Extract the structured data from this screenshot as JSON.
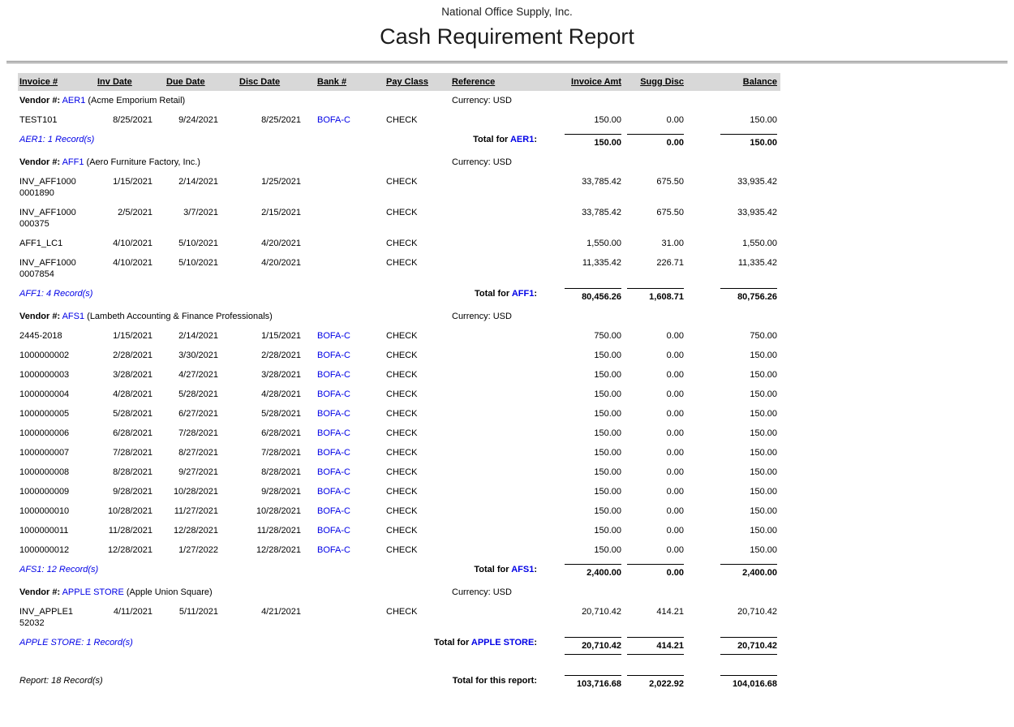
{
  "page": {
    "company": "National Office Supply, Inc.",
    "title": "Cash Requirement Report"
  },
  "colors": {
    "link_blue": "#0000e6",
    "header_gray": "#d8d8d8",
    "rule_gray": "#7f7f7f"
  },
  "columns": [
    "Invoice #",
    "Inv Date",
    "Due Date",
    "Disc Date",
    "Bank #",
    "Pay Class",
    "Reference",
    "Invoice Amt",
    "Sugg Disc",
    "Balance"
  ],
  "labels": {
    "vendor_prefix": "Vendor #:",
    "total_for": "Total for",
    "colon": ":"
  },
  "vendors": [
    {
      "code": "AER1",
      "name": "(Acme Emporium Retail)",
      "currency": "Currency: USD",
      "records_label": "AER1: 1 Record(s)",
      "total": {
        "invoice_amt": "150.00",
        "sugg_disc": "0.00",
        "balance": "150.00"
      },
      "rows": [
        {
          "invoice": "TEST101",
          "inv_date": "8/25/2021",
          "due_date": "9/24/2021",
          "disc_date": "8/25/2021",
          "bank": "BOFA-C",
          "pay_class": "CHECK",
          "reference": "",
          "invoice_amt": "150.00",
          "sugg_disc": "0.00",
          "balance": "150.00"
        }
      ]
    },
    {
      "code": "AFF1",
      "name": "(Aero Furniture Factory, Inc.)",
      "currency": "Currency: USD",
      "records_label": "AFF1: 4 Record(s)",
      "total": {
        "invoice_amt": "80,456.26",
        "sugg_disc": "1,608.71",
        "balance": "80,756.26"
      },
      "rows": [
        {
          "invoice": "INV_AFF10000001890",
          "inv_date": "1/15/2021",
          "due_date": "2/14/2021",
          "disc_date": "1/25/2021",
          "bank": "",
          "pay_class": "CHECK",
          "reference": "",
          "invoice_amt": "33,785.42",
          "sugg_disc": "675.50",
          "balance": "33,935.42"
        },
        {
          "invoice": "INV_AFF1000000375",
          "inv_date": "2/5/2021",
          "due_date": "3/7/2021",
          "disc_date": "2/15/2021",
          "bank": "",
          "pay_class": "CHECK",
          "reference": "",
          "invoice_amt": "33,785.42",
          "sugg_disc": "675.50",
          "balance": "33,935.42"
        },
        {
          "invoice": "AFF1_LC1",
          "inv_date": "4/10/2021",
          "due_date": "5/10/2021",
          "disc_date": "4/20/2021",
          "bank": "",
          "pay_class": "CHECK",
          "reference": "",
          "invoice_amt": "1,550.00",
          "sugg_disc": "31.00",
          "balance": "1,550.00"
        },
        {
          "invoice": "INV_AFF10000007854",
          "inv_date": "4/10/2021",
          "due_date": "5/10/2021",
          "disc_date": "4/20/2021",
          "bank": "",
          "pay_class": "CHECK",
          "reference": "",
          "invoice_amt": "11,335.42",
          "sugg_disc": "226.71",
          "balance": "11,335.42"
        }
      ]
    },
    {
      "code": "AFS1",
      "name": "(Lambeth Accounting & Finance Professionals)",
      "currency": "Currency: USD",
      "records_label": "AFS1: 12 Record(s)",
      "total": {
        "invoice_amt": "2,400.00",
        "sugg_disc": "0.00",
        "balance": "2,400.00"
      },
      "rows": [
        {
          "invoice": "2445-2018",
          "inv_date": "1/15/2021",
          "due_date": "2/14/2021",
          "disc_date": "1/15/2021",
          "bank": "BOFA-C",
          "pay_class": "CHECK",
          "reference": "",
          "invoice_amt": "750.00",
          "sugg_disc": "0.00",
          "balance": "750.00"
        },
        {
          "invoice": "1000000002",
          "inv_date": "2/28/2021",
          "due_date": "3/30/2021",
          "disc_date": "2/28/2021",
          "bank": "BOFA-C",
          "pay_class": "CHECK",
          "reference": "",
          "invoice_amt": "150.00",
          "sugg_disc": "0.00",
          "balance": "150.00"
        },
        {
          "invoice": "1000000003",
          "inv_date": "3/28/2021",
          "due_date": "4/27/2021",
          "disc_date": "3/28/2021",
          "bank": "BOFA-C",
          "pay_class": "CHECK",
          "reference": "",
          "invoice_amt": "150.00",
          "sugg_disc": "0.00",
          "balance": "150.00"
        },
        {
          "invoice": "1000000004",
          "inv_date": "4/28/2021",
          "due_date": "5/28/2021",
          "disc_date": "4/28/2021",
          "bank": "BOFA-C",
          "pay_class": "CHECK",
          "reference": "",
          "invoice_amt": "150.00",
          "sugg_disc": "0.00",
          "balance": "150.00"
        },
        {
          "invoice": "1000000005",
          "inv_date": "5/28/2021",
          "due_date": "6/27/2021",
          "disc_date": "5/28/2021",
          "bank": "BOFA-C",
          "pay_class": "CHECK",
          "reference": "",
          "invoice_amt": "150.00",
          "sugg_disc": "0.00",
          "balance": "150.00"
        },
        {
          "invoice": "1000000006",
          "inv_date": "6/28/2021",
          "due_date": "7/28/2021",
          "disc_date": "6/28/2021",
          "bank": "BOFA-C",
          "pay_class": "CHECK",
          "reference": "",
          "invoice_amt": "150.00",
          "sugg_disc": "0.00",
          "balance": "150.00"
        },
        {
          "invoice": "1000000007",
          "inv_date": "7/28/2021",
          "due_date": "8/27/2021",
          "disc_date": "7/28/2021",
          "bank": "BOFA-C",
          "pay_class": "CHECK",
          "reference": "",
          "invoice_amt": "150.00",
          "sugg_disc": "0.00",
          "balance": "150.00"
        },
        {
          "invoice": "1000000008",
          "inv_date": "8/28/2021",
          "due_date": "9/27/2021",
          "disc_date": "8/28/2021",
          "bank": "BOFA-C",
          "pay_class": "CHECK",
          "reference": "",
          "invoice_amt": "150.00",
          "sugg_disc": "0.00",
          "balance": "150.00"
        },
        {
          "invoice": "1000000009",
          "inv_date": "9/28/2021",
          "due_date": "10/28/2021",
          "disc_date": "9/28/2021",
          "bank": "BOFA-C",
          "pay_class": "CHECK",
          "reference": "",
          "invoice_amt": "150.00",
          "sugg_disc": "0.00",
          "balance": "150.00"
        },
        {
          "invoice": "1000000010",
          "inv_date": "10/28/2021",
          "due_date": "11/27/2021",
          "disc_date": "10/28/2021",
          "bank": "BOFA-C",
          "pay_class": "CHECK",
          "reference": "",
          "invoice_amt": "150.00",
          "sugg_disc": "0.00",
          "balance": "150.00"
        },
        {
          "invoice": "1000000011",
          "inv_date": "11/28/2021",
          "due_date": "12/28/2021",
          "disc_date": "11/28/2021",
          "bank": "BOFA-C",
          "pay_class": "CHECK",
          "reference": "",
          "invoice_amt": "150.00",
          "sugg_disc": "0.00",
          "balance": "150.00"
        },
        {
          "invoice": "1000000012",
          "inv_date": "12/28/2021",
          "due_date": "1/27/2022",
          "disc_date": "12/28/2021",
          "bank": "BOFA-C",
          "pay_class": "CHECK",
          "reference": "",
          "invoice_amt": "150.00",
          "sugg_disc": "0.00",
          "balance": "150.00"
        }
      ]
    },
    {
      "code": "APPLE STORE",
      "name": "(Apple Union Square)",
      "currency": "Currency: USD",
      "records_label": "APPLE STORE: 1 Record(s)",
      "total": {
        "invoice_amt": "20,710.42",
        "sugg_disc": "414.21",
        "balance": "20,710.42"
      },
      "rows": [
        {
          "invoice": "INV_APPLE152032",
          "inv_date": "4/11/2021",
          "due_date": "5/11/2021",
          "disc_date": "4/21/2021",
          "bank": "",
          "pay_class": "CHECK",
          "reference": "",
          "invoice_amt": "20,710.42",
          "sugg_disc": "414.21",
          "balance": "20,710.42"
        }
      ]
    }
  ],
  "footer": {
    "records_label": "Report: 18 Record(s)",
    "total_label": "Total for this report:",
    "invoice_amt": "103,716.68",
    "sugg_disc": "2,022.92",
    "balance": "104,016.68"
  }
}
